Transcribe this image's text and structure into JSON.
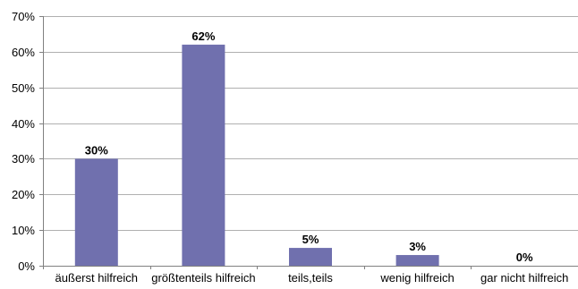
{
  "chart_data": {
    "type": "bar",
    "categories": [
      "äußerst hilfreich",
      "größtenteils hilfreich",
      "teils,teils",
      "wenig hilfreich",
      "gar nicht hilfreich"
    ],
    "values": [
      30,
      62,
      5,
      3,
      0
    ],
    "data_labels": [
      "30%",
      "62%",
      "5%",
      "3%",
      "0%"
    ],
    "y_ticks": [
      "0%",
      "10%",
      "20%",
      "30%",
      "40%",
      "50%",
      "60%",
      "70%"
    ],
    "ylim": [
      0,
      70
    ],
    "y_step": 10,
    "grid": true,
    "legend": "none",
    "title": "",
    "xlabel": "",
    "ylabel": "",
    "colors": {
      "bar": "#7070ae",
      "grid": "#b0b0b0",
      "axis": "#808080"
    }
  }
}
